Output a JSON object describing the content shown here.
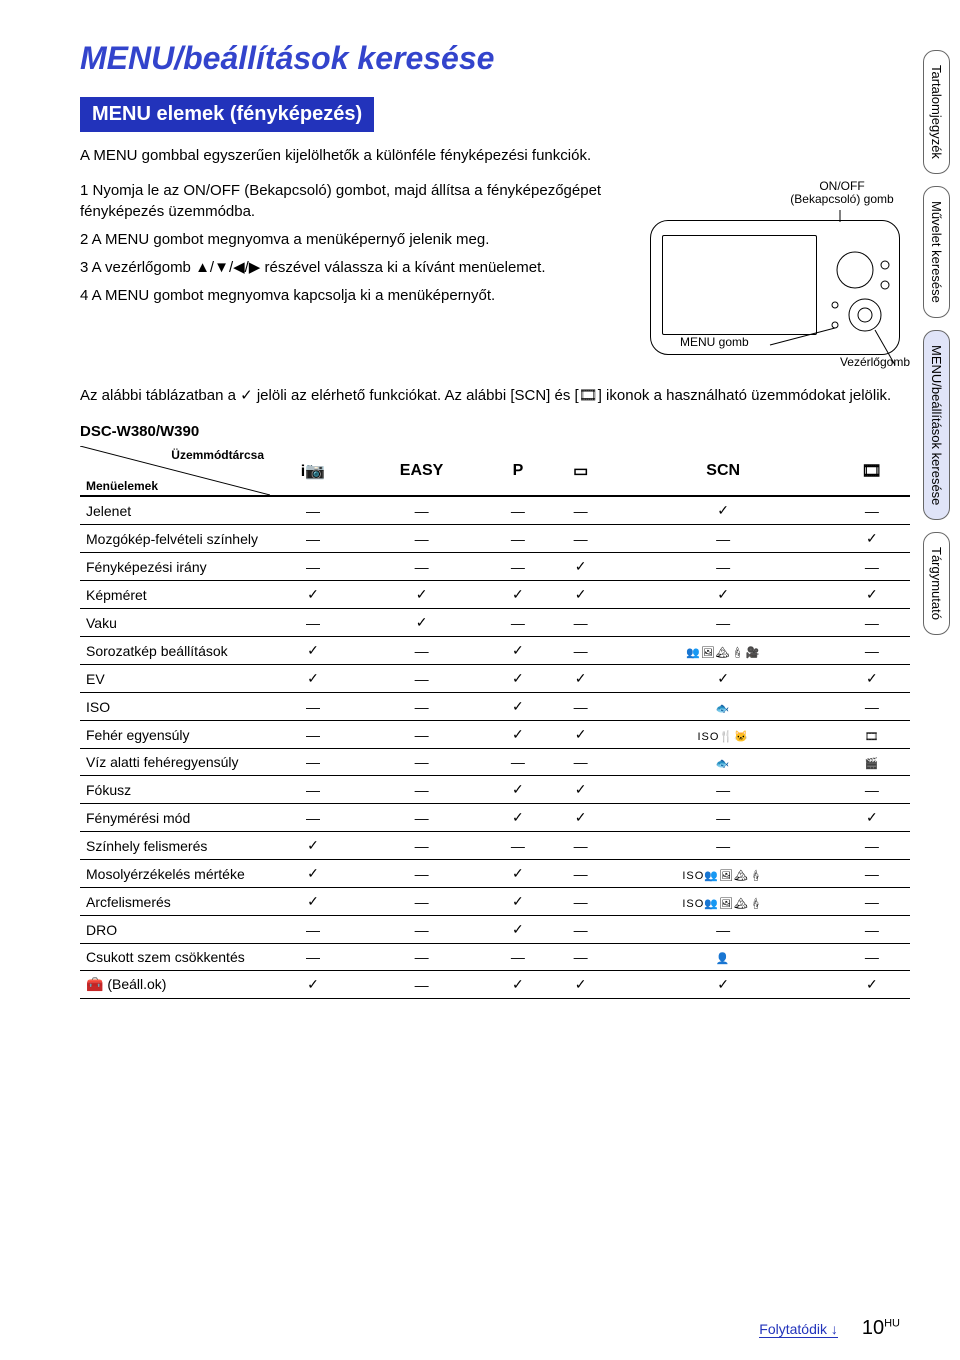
{
  "title": "MENU/beállítások keresése",
  "section_header": "MENU elemek (fényképezés)",
  "intro": "A MENU gombbal egyszerűen kijelölhetők a különféle fényképezési funkciók.",
  "steps": {
    "s1": "1 Nyomja le az ON/OFF (Bekapcsoló) gombot, majd állítsa a fényképezőgépet fényképezés üzemmódba.",
    "s2": "2 A MENU gombot megnyomva a menüképernyő jelenik meg.",
    "s3_prefix": "3 A vezérlőgomb ",
    "s3_arrows": "▲/▼/◀/▶",
    "s3_suffix": " részével válassza ki a kívánt menüelemet.",
    "s4": "4 A MENU gombot megnyomva kapcsolja ki a menüképernyőt."
  },
  "diagram": {
    "onoff_label_line1": "ON/OFF",
    "onoff_label_line2": "(Bekapcsoló) gomb",
    "menu_label": "MENU gomb",
    "vezerlo_label": "Vezérlőgomb"
  },
  "note": "Az alábbi táblázatban a ✓ jelöli az elérhető funkciókat. Az alábbi [SCN] és [🎞] ikonok a használható üzemmódokat jelölik.",
  "model": "DSC-W380/W390",
  "side_tabs": {
    "t1": "Tartalomjegyzék",
    "t2": "Művelet keresése",
    "t3": "MENU/beállítások keresése",
    "t4": "Tárgymutató"
  },
  "table": {
    "diag_top": "Üzemmódtárcsa",
    "diag_bottom": "Menüelemek",
    "columns": {
      "c1": "i📷",
      "c2": "EASY",
      "c3": "P",
      "c4": "▭",
      "c5": "SCN",
      "c6": "🎞"
    },
    "rows": [
      {
        "label": "Jelenet",
        "cells": [
          "—",
          "—",
          "—",
          "—",
          "✓",
          "—"
        ]
      },
      {
        "label": "Mozgókép-felvételi színhely",
        "cells": [
          "—",
          "—",
          "—",
          "—",
          "—",
          "✓"
        ]
      },
      {
        "label": "Fényképezési irány",
        "cells": [
          "—",
          "—",
          "—",
          "✓",
          "—",
          "—"
        ]
      },
      {
        "label": "Képméret",
        "cells": [
          "✓",
          "✓",
          "✓",
          "✓",
          "✓",
          "✓"
        ]
      },
      {
        "label": "Vaku",
        "cells": [
          "—",
          "✓",
          "—",
          "—",
          "—",
          "—"
        ]
      },
      {
        "label": "Sorozatkép beállítások",
        "cells": [
          "✓",
          "—",
          "✓",
          "—",
          "👥🖼🏔🕯🎥",
          "—"
        ]
      },
      {
        "label": "EV",
        "cells": [
          "✓",
          "—",
          "✓",
          "✓",
          "✓",
          "✓"
        ]
      },
      {
        "label": "ISO",
        "cells": [
          "—",
          "—",
          "✓",
          "—",
          "🐟",
          "—"
        ]
      },
      {
        "label": "Fehér egyensúly",
        "cells": [
          "—",
          "—",
          "✓",
          "✓",
          "ISO🍴🐱",
          "🎞"
        ]
      },
      {
        "label": "Víz alatti fehéregyensúly",
        "cells": [
          "—",
          "—",
          "—",
          "—",
          "🐟",
          "🎬"
        ]
      },
      {
        "label": "Fókusz",
        "cells": [
          "—",
          "—",
          "✓",
          "✓",
          "—",
          "—"
        ]
      },
      {
        "label": "Fénymérési mód",
        "cells": [
          "—",
          "—",
          "✓",
          "✓",
          "—",
          "✓"
        ]
      },
      {
        "label": "Színhely felismerés",
        "cells": [
          "✓",
          "—",
          "—",
          "—",
          "—",
          "—"
        ]
      },
      {
        "label": "Mosolyérzékelés mértéke",
        "cells": [
          "✓",
          "—",
          "✓",
          "—",
          "ISO👥🖼🏔🕯",
          "—"
        ]
      },
      {
        "label": "Arcfelismerés",
        "cells": [
          "✓",
          "—",
          "✓",
          "—",
          "ISO👥🖼🏔🕯",
          "—"
        ]
      },
      {
        "label": "DRO",
        "cells": [
          "—",
          "—",
          "✓",
          "—",
          "—",
          "—"
        ]
      },
      {
        "label": "Csukott szem csökkentés",
        "cells": [
          "—",
          "—",
          "—",
          "—",
          "👤",
          "—"
        ]
      },
      {
        "label": "🧰 (Beáll.ok)",
        "cells": [
          "✓",
          "—",
          "✓",
          "✓",
          "✓",
          "✓"
        ]
      }
    ]
  },
  "footer": {
    "continue": "Folytatódik ",
    "arrow": "↓",
    "page_num": "10",
    "page_suffix": "HU"
  }
}
